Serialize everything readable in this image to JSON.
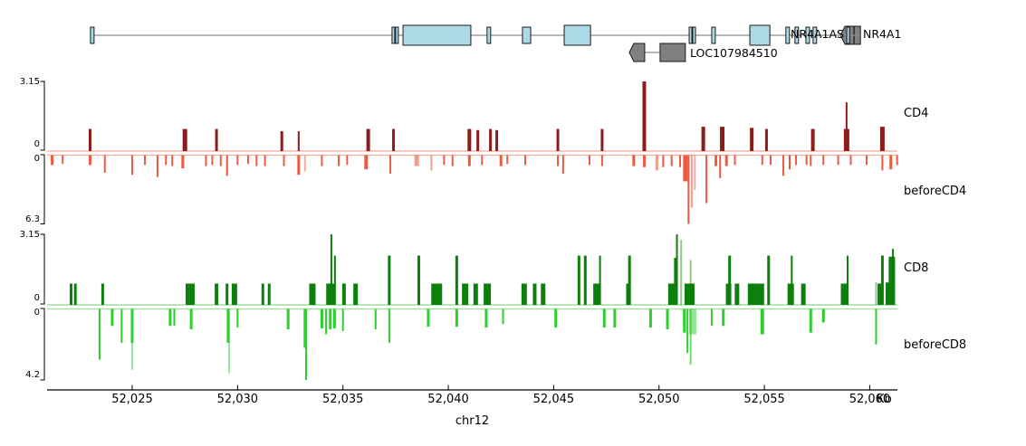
{
  "chart_data": {
    "type": "genome-tracks",
    "x_axis": {
      "chromosome": "chr12",
      "unit_label": "Kb",
      "ticks_kb": [
        52025,
        52030,
        52035,
        52040,
        52045,
        52050,
        52055,
        52060
      ],
      "tick_labels": [
        "52,025",
        "52,030",
        "52,035",
        "52,040",
        "52,045",
        "52,050",
        "52,055",
        "52,060"
      ],
      "range_kb": [
        52020.96,
        52061.31
      ]
    },
    "genes": [
      {
        "name": "LOC107984510",
        "label": "LOC107984510",
        "fill": "#808080",
        "stroke": "#1a1a1a",
        "lines": [
          [
            52049.32,
            52050.05
          ]
        ],
        "arrows": [
          [
            52048.59,
            0.73
          ]
        ],
        "exons": [
          [
            52050.05,
            1.2
          ]
        ]
      },
      {
        "name": "NR4A1",
        "label": "NR4A1",
        "fill": "#808080",
        "stroke": "#1a1a1a",
        "lines": [],
        "arrows": [
          [
            52058.61,
            0.39
          ]
        ],
        "exons": [
          [
            52059.04,
            0.21
          ],
          [
            52059.26,
            0.3
          ]
        ]
      },
      {
        "name": "NR4A1AS",
        "label": "NR4A1AS",
        "fill": "#add8e6",
        "stroke": "#1a1a1a",
        "lines": [
          [
            52023.02,
            52059.55
          ]
        ],
        "arrows": [],
        "exons": [
          [
            52023.02,
            0.17
          ],
          [
            52037.33,
            0.13
          ],
          [
            52037.5,
            0.13
          ],
          [
            52037.85,
            3.22,
            1
          ],
          [
            52041.84,
            0.17
          ],
          [
            52043.52,
            0.39
          ],
          [
            52045.5,
            1.25,
            1
          ],
          [
            52051.43,
            0.13
          ],
          [
            52051.6,
            0.13
          ],
          [
            52052.5,
            0.17
          ],
          [
            52054.31,
            0.95,
            1
          ],
          [
            52056.02,
            0.17
          ],
          [
            52056.45,
            0.17
          ],
          [
            52056.97,
            0.17
          ],
          [
            52057.31,
            0.17
          ],
          [
            52058.91,
            0.13
          ]
        ]
      }
    ],
    "tracks": [
      {
        "id": "CD4",
        "label": "CD4",
        "direction": "up",
        "color": "#8e1b1b",
        "baseline_color": "#f2a698",
        "ylim": [
          0,
          3.15
        ],
        "scale": {
          "top": "3.15",
          "bottom": "0"
        },
        "bars": [
          [
            52023.0,
            1.0,
            3
          ],
          [
            52027.5,
            1.0,
            5
          ],
          [
            52029.0,
            1.0,
            3
          ],
          [
            52032.1,
            0.9,
            3
          ],
          [
            52032.9,
            0.9,
            2
          ],
          [
            52036.2,
            1.0,
            4
          ],
          [
            52037.4,
            1.0,
            3
          ],
          [
            52041.0,
            1.0,
            4
          ],
          [
            52041.4,
            0.95,
            3
          ],
          [
            52042.0,
            1.0,
            3
          ],
          [
            52042.3,
            0.95,
            3
          ],
          [
            52045.2,
            1.0,
            3
          ],
          [
            52047.3,
            1.0,
            3
          ],
          [
            52049.3,
            3.15,
            4
          ],
          [
            52052.1,
            1.1,
            4
          ],
          [
            52053.0,
            1.1,
            5
          ],
          [
            52054.4,
            1.05,
            4
          ],
          [
            52055.1,
            1.0,
            3
          ],
          [
            52057.3,
            1.0,
            4
          ],
          [
            52058.9,
            1.0,
            6
          ],
          [
            52058.9,
            2.2,
            2
          ],
          [
            52060.6,
            1.1,
            5
          ]
        ]
      },
      {
        "id": "beforeCD4",
        "label": "beforeCD4",
        "direction": "down",
        "color": "#ed5941",
        "baseline_color": "#f5b0a4",
        "ylim": [
          0,
          6.3
        ],
        "scale": {
          "top": "0",
          "bottom": "6.3"
        },
        "bars": [
          [
            52021.2,
            0.9,
            3
          ],
          [
            52021.7,
            0.8,
            2
          ],
          [
            52023.0,
            0.9,
            3
          ],
          [
            52023.7,
            1.6,
            2
          ],
          [
            52025.0,
            1.8,
            2
          ],
          [
            52025.6,
            0.9,
            2
          ],
          [
            52026.2,
            2.0,
            2
          ],
          [
            52026.6,
            0.9,
            2
          ],
          [
            52026.9,
            1.0,
            2
          ],
          [
            52027.4,
            1.2,
            3
          ],
          [
            52028.5,
            1.0,
            2
          ],
          [
            52028.8,
            0.9,
            2
          ],
          [
            52029.2,
            1.0,
            2
          ],
          [
            52029.5,
            1.9,
            2
          ],
          [
            52030.0,
            0.9,
            2
          ],
          [
            52030.5,
            0.8,
            2
          ],
          [
            52030.9,
            1.0,
            2
          ],
          [
            52031.3,
            1.0,
            2
          ],
          [
            52032.2,
            1.0,
            2
          ],
          [
            52032.9,
            1.8,
            3
          ],
          [
            52033.2,
            1.5,
            2,
            0.5
          ],
          [
            52034.0,
            1.0,
            2
          ],
          [
            52034.8,
            1.0,
            2
          ],
          [
            52035.2,
            0.9,
            2
          ],
          [
            52036.1,
            1.3,
            4
          ],
          [
            52037.25,
            1.7,
            2
          ],
          [
            52038.5,
            1.0,
            5,
            0.6
          ],
          [
            52039.2,
            1.4,
            2,
            0.6
          ],
          [
            52039.8,
            0.9,
            2
          ],
          [
            52040.2,
            1.0,
            2
          ],
          [
            52041.0,
            1.0,
            3
          ],
          [
            52041.6,
            0.9,
            2
          ],
          [
            52042.5,
            1.0,
            3
          ],
          [
            52042.8,
            0.8,
            2
          ],
          [
            52043.65,
            0.9,
            2
          ],
          [
            52045.2,
            1.0,
            2
          ],
          [
            52045.45,
            1.7,
            2
          ],
          [
            52046.7,
            0.9,
            2
          ],
          [
            52047.3,
            1.0,
            2
          ],
          [
            52048.8,
            1.0,
            3
          ],
          [
            52049.3,
            1.1,
            3
          ],
          [
            52049.9,
            1.4,
            3,
            0.6
          ],
          [
            52050.2,
            1.1,
            2
          ],
          [
            52050.6,
            1.0,
            2
          ],
          [
            52051.0,
            1.1,
            2
          ],
          [
            52051.25,
            2.4,
            5
          ],
          [
            52051.4,
            6.3,
            2
          ],
          [
            52051.55,
            4.8,
            2,
            0.6
          ],
          [
            52051.7,
            3.2,
            2,
            0.5
          ],
          [
            52052.25,
            4.4,
            2
          ],
          [
            52052.7,
            1.0,
            3
          ],
          [
            52052.9,
            2.1,
            2
          ],
          [
            52053.2,
            1.0,
            3
          ],
          [
            52053.6,
            0.9,
            2
          ],
          [
            52054.9,
            0.9,
            2
          ],
          [
            52055.3,
            0.9,
            2
          ],
          [
            52055.9,
            1.9,
            2
          ],
          [
            52056.2,
            1.3,
            2
          ],
          [
            52056.5,
            0.9,
            2
          ],
          [
            52057.0,
            0.9,
            2
          ],
          [
            52057.2,
            1.0,
            2
          ],
          [
            52057.8,
            0.9,
            2
          ],
          [
            52058.5,
            0.9,
            2
          ],
          [
            52059.1,
            0.9,
            2
          ],
          [
            52059.85,
            0.9,
            2
          ],
          [
            52060.6,
            1.4,
            2
          ],
          [
            52061.0,
            1.3,
            3
          ],
          [
            52061.3,
            0.9,
            2
          ]
        ]
      },
      {
        "id": "CD8",
        "label": "CD8",
        "direction": "up",
        "color": "#0c7f0c",
        "baseline_color": "#8fd48f",
        "ylim": [
          0,
          3.15
        ],
        "scale": {
          "top": "3.15",
          "bottom": "0"
        },
        "bars": [
          [
            52022.1,
            0.95,
            3
          ],
          [
            52022.3,
            0.95,
            3
          ],
          [
            52023.6,
            0.95,
            3
          ],
          [
            52027.75,
            0.95,
            10
          ],
          [
            52029.0,
            0.95,
            4
          ],
          [
            52029.5,
            0.95,
            3
          ],
          [
            52029.85,
            0.95,
            6
          ],
          [
            52031.2,
            0.95,
            3
          ],
          [
            52031.5,
            0.95,
            3
          ],
          [
            52033.55,
            0.95,
            7
          ],
          [
            52034.4,
            0.95,
            9
          ],
          [
            52034.45,
            3.15,
            2
          ],
          [
            52034.62,
            2.2,
            2
          ],
          [
            52035.05,
            0.95,
            4
          ],
          [
            52035.6,
            0.95,
            5
          ],
          [
            52037.2,
            2.2,
            3
          ],
          [
            52038.6,
            2.2,
            3
          ],
          [
            52039.45,
            0.95,
            12
          ],
          [
            52040.4,
            2.2,
            3
          ],
          [
            52040.8,
            0.95,
            7
          ],
          [
            52041.3,
            0.95,
            5
          ],
          [
            52041.85,
            0.95,
            8
          ],
          [
            52043.6,
            0.95,
            6
          ],
          [
            52044.1,
            0.95,
            4
          ],
          [
            52044.5,
            0.95,
            5
          ],
          [
            52046.2,
            2.2,
            3
          ],
          [
            52046.5,
            2.2,
            3
          ],
          [
            52047.05,
            0.95,
            8
          ],
          [
            52047.2,
            2.2,
            2
          ],
          [
            52048.55,
            0.95,
            5
          ],
          [
            52048.6,
            2.2,
            3
          ],
          [
            52050.65,
            0.95,
            10
          ],
          [
            52050.8,
            2.1,
            4
          ],
          [
            52050.85,
            3.15,
            2
          ],
          [
            52051.05,
            2.9,
            2,
            0.45
          ],
          [
            52051.45,
            0.95,
            11
          ],
          [
            52051.5,
            2.0,
            2,
            0.45
          ],
          [
            52053.3,
            0.95,
            6
          ],
          [
            52053.35,
            2.2,
            3
          ],
          [
            52053.7,
            0.95,
            5
          ],
          [
            52054.6,
            0.95,
            18
          ],
          [
            52055.2,
            2.2,
            3
          ],
          [
            52056.25,
            0.95,
            7
          ],
          [
            52056.3,
            2.2,
            2
          ],
          [
            52056.85,
            0.95,
            5
          ],
          [
            52058.8,
            0.95,
            8
          ],
          [
            52058.95,
            2.2,
            2
          ],
          [
            52060.3,
            1.0,
            2,
            0.45
          ],
          [
            52060.5,
            0.95,
            6
          ],
          [
            52060.6,
            2.2,
            3
          ],
          [
            52060.97,
            1.0,
            10
          ],
          [
            52061.05,
            2.15,
            7
          ],
          [
            52061.1,
            2.5,
            2
          ]
        ]
      },
      {
        "id": "beforeCD8",
        "label": "beforeCD8",
        "direction": "down",
        "color": "#2ccf2c",
        "baseline_color": "#9fdf9f",
        "ylim": [
          0,
          4.2
        ],
        "scale": {
          "top": "0",
          "bottom": "4.2"
        },
        "bars": [
          [
            52023.45,
            3.0,
            2
          ],
          [
            52024.05,
            1.0,
            3
          ],
          [
            52024.5,
            2.0,
            2
          ],
          [
            52025.0,
            2.0,
            3
          ],
          [
            52025.0,
            3.6,
            2,
            0.5
          ],
          [
            52026.8,
            1.0,
            3
          ],
          [
            52027.0,
            1.0,
            2
          ],
          [
            52027.8,
            1.2,
            3
          ],
          [
            52029.55,
            2.0,
            3
          ],
          [
            52029.6,
            3.8,
            2,
            0.5
          ],
          [
            52030.0,
            1.1,
            2
          ],
          [
            52032.4,
            1.2,
            3
          ],
          [
            52033.2,
            2.3,
            3
          ],
          [
            52033.25,
            4.2,
            2
          ],
          [
            52034.0,
            1.15,
            3
          ],
          [
            52034.2,
            1.5,
            2
          ],
          [
            52034.4,
            1.2,
            3
          ],
          [
            52034.6,
            1.15,
            3
          ],
          [
            52035.0,
            1.3,
            2
          ],
          [
            52036.55,
            1.2,
            2
          ],
          [
            52037.2,
            2.0,
            2
          ],
          [
            52039.05,
            1.05,
            3
          ],
          [
            52040.4,
            1.05,
            3
          ],
          [
            52041.8,
            1.1,
            3
          ],
          [
            52042.6,
            0.9,
            2
          ],
          [
            52045.1,
            1.1,
            3
          ],
          [
            52047.4,
            1.1,
            3
          ],
          [
            52047.9,
            1.1,
            3
          ],
          [
            52049.6,
            1.1,
            3
          ],
          [
            52050.4,
            1.2,
            3
          ],
          [
            52051.2,
            1.4,
            3
          ],
          [
            52051.35,
            2.6,
            2
          ],
          [
            52051.5,
            3.3,
            2,
            0.7
          ],
          [
            52051.6,
            1.5,
            8,
            0.5
          ],
          [
            52052.5,
            1.0,
            2
          ],
          [
            52053.05,
            1.0,
            3
          ],
          [
            52054.9,
            1.5,
            4
          ],
          [
            52057.2,
            1.4,
            3
          ],
          [
            52057.8,
            0.8,
            3
          ],
          [
            52060.3,
            2.1,
            2
          ]
        ]
      }
    ]
  }
}
